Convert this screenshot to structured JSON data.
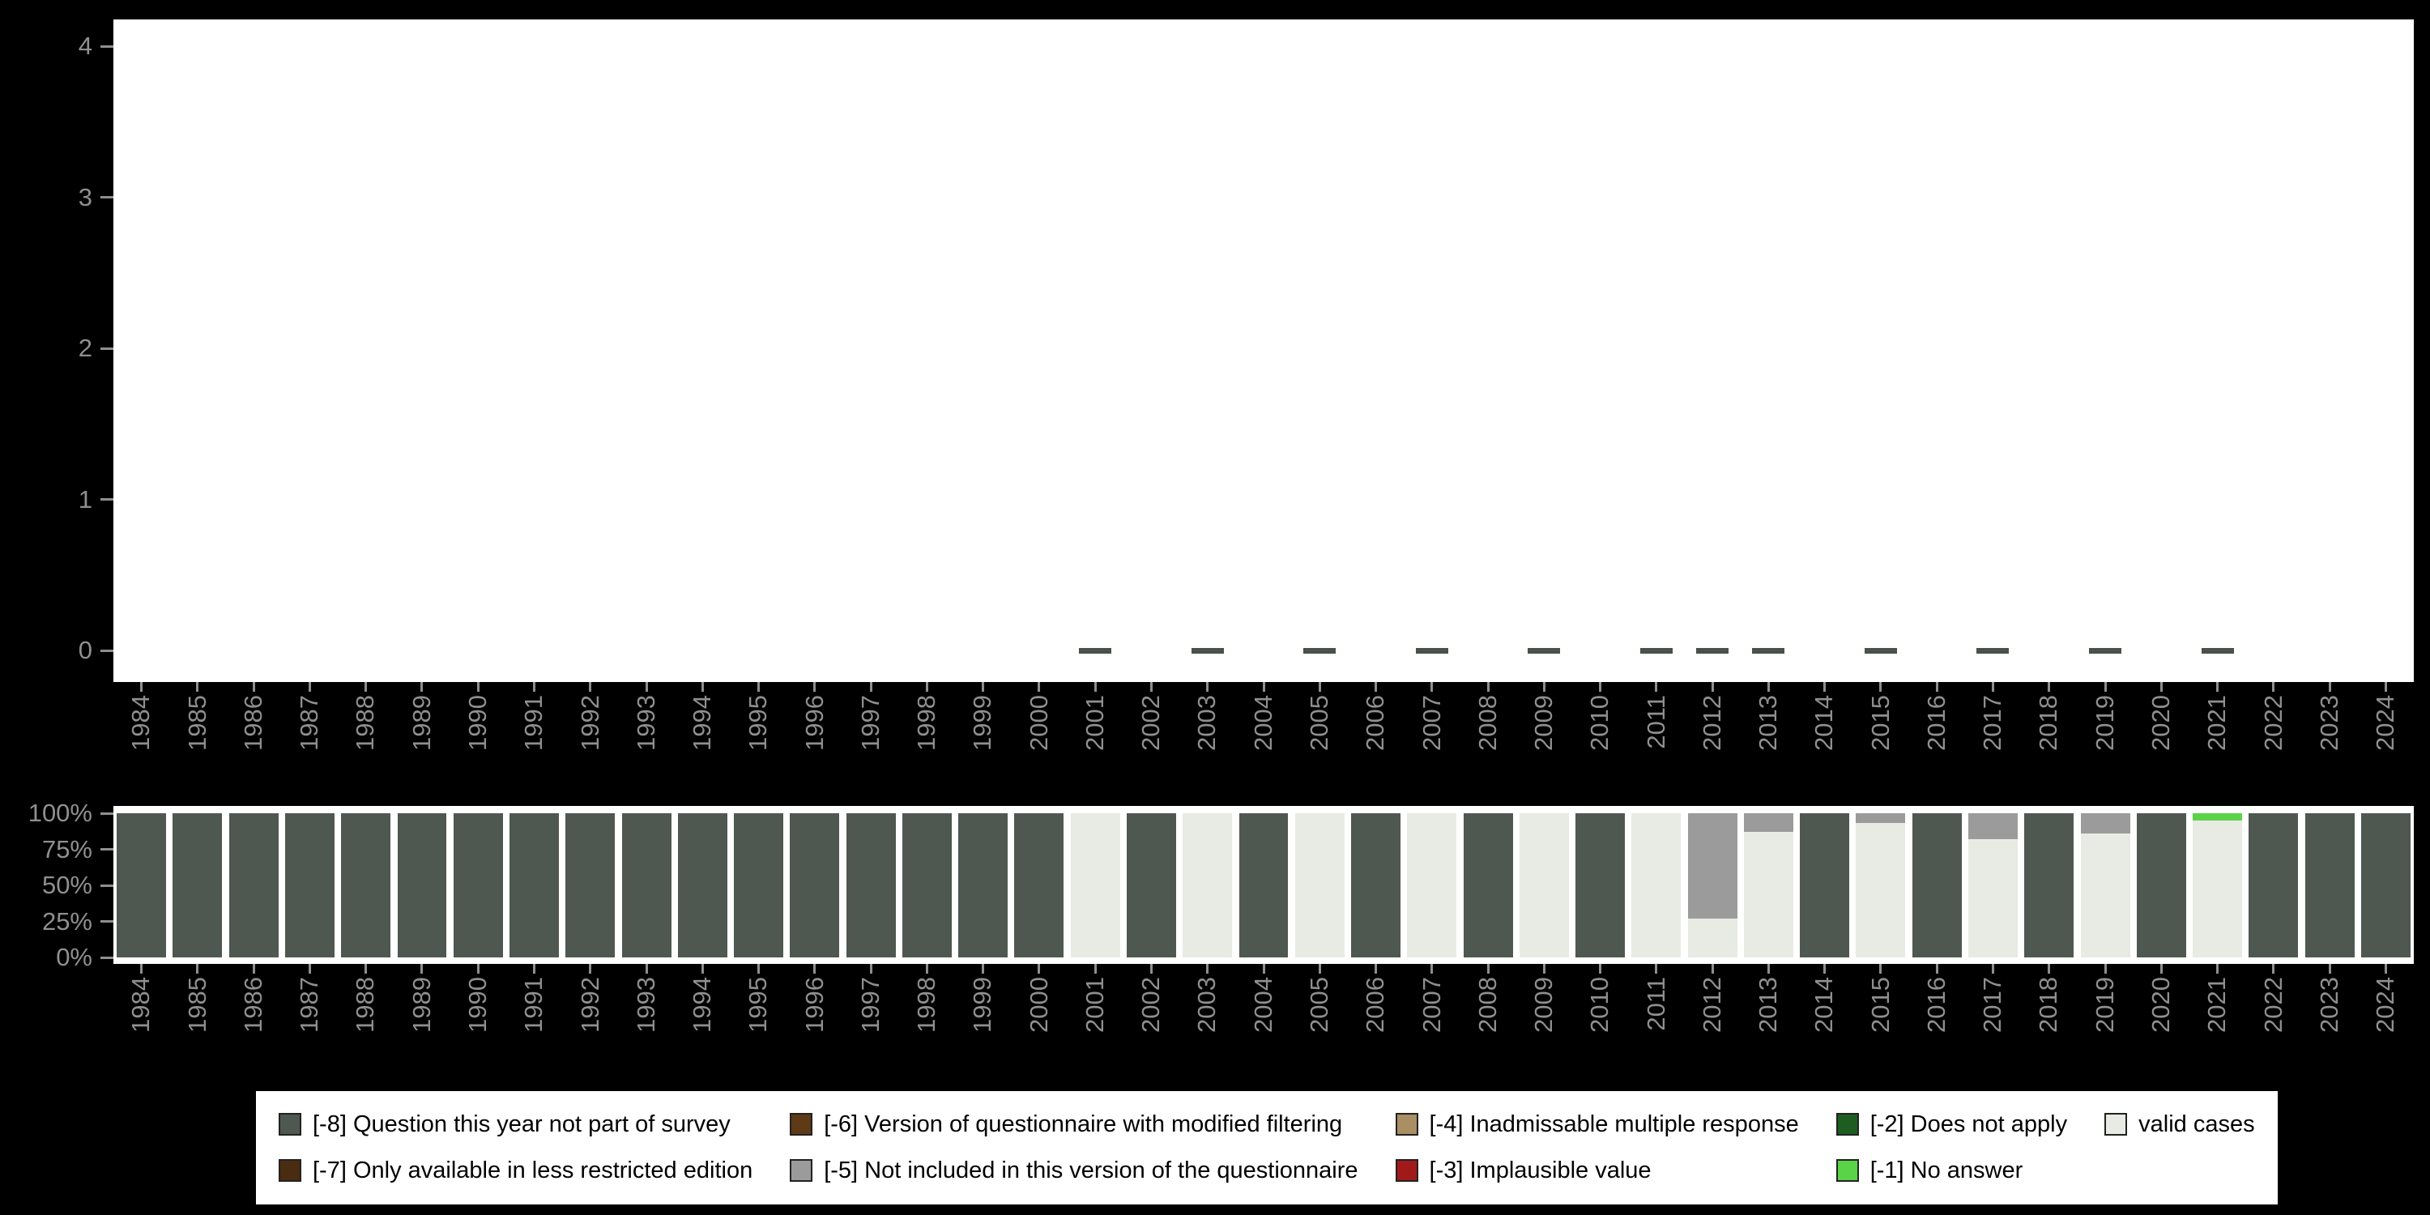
{
  "style": {
    "page_background": "#000000",
    "panel_background": "#ffffff",
    "axis_text_color": "#8f8f8f",
    "legend_background": "#ffffff",
    "legend_text_color": "#000000"
  },
  "years": [
    "1984",
    "1985",
    "1986",
    "1987",
    "1988",
    "1989",
    "1990",
    "1991",
    "1992",
    "1993",
    "1994",
    "1995",
    "1996",
    "1997",
    "1998",
    "1999",
    "2000",
    "2001",
    "2002",
    "2003",
    "2004",
    "2005",
    "2006",
    "2007",
    "2008",
    "2009",
    "2010",
    "2011",
    "2012",
    "2013",
    "2014",
    "2015",
    "2016",
    "2017",
    "2018",
    "2019",
    "2020",
    "2021",
    "2022",
    "2023",
    "2024"
  ],
  "chart_data": [
    {
      "type": "scatter",
      "title": "",
      "xlabel": "",
      "ylabel": "",
      "marker": "dash",
      "marker_color": "#49514a",
      "ylim": [
        0,
        4
      ],
      "yticks": [
        0,
        1,
        2,
        3,
        4
      ],
      "ytick_labels": [
        "0",
        "1",
        "2",
        "3",
        "4"
      ],
      "x": [
        2001,
        2003,
        2005,
        2007,
        2009,
        2011,
        2012,
        2013,
        2015,
        2017,
        2019,
        2021
      ],
      "y": [
        0,
        0,
        0,
        0,
        0,
        0,
        0,
        0,
        0,
        0,
        0,
        0
      ],
      "note": "dash marker drawn at value 0 for each survey year with valid cases; x axis spans all years 1984-2024"
    },
    {
      "type": "bar",
      "subtype": "stacked-percent",
      "title": "",
      "xlabel": "",
      "ylabel": "",
      "ylim": [
        0,
        100
      ],
      "yticks": [
        0,
        25,
        50,
        75,
        100
      ],
      "ytick_labels": [
        "0%",
        "25%",
        "50%",
        "75%",
        "100%"
      ],
      "categories": [
        1984,
        1985,
        1986,
        1987,
        1988,
        1989,
        1990,
        1991,
        1992,
        1993,
        1994,
        1995,
        1996,
        1997,
        1998,
        1999,
        2000,
        2001,
        2002,
        2003,
        2004,
        2005,
        2006,
        2007,
        2008,
        2009,
        2010,
        2011,
        2012,
        2013,
        2014,
        2015,
        2016,
        2017,
        2018,
        2019,
        2020,
        2021,
        2022,
        2023,
        2024
      ],
      "stack_order": "series listed bottom-to-top",
      "series": [
        {
          "name": "valid cases",
          "color": "#e8ebe3",
          "values": [
            0,
            0,
            0,
            0,
            0,
            0,
            0,
            0,
            0,
            0,
            0,
            0,
            0,
            0,
            0,
            0,
            0,
            100,
            0,
            100,
            0,
            100,
            0,
            100,
            0,
            100,
            0,
            100,
            27,
            87,
            0,
            93,
            0,
            82,
            0,
            86,
            0,
            95,
            0,
            0,
            0
          ]
        },
        {
          "name": "[-1] No answer",
          "color": "#5bd348",
          "values": [
            0,
            0,
            0,
            0,
            0,
            0,
            0,
            0,
            0,
            0,
            0,
            0,
            0,
            0,
            0,
            0,
            0,
            0,
            0,
            0,
            0,
            0,
            0,
            0,
            0,
            0,
            0,
            0,
            0,
            0,
            0,
            0,
            0,
            0,
            0,
            0,
            0,
            5,
            0,
            0,
            0
          ]
        },
        {
          "name": "[-2] Does not apply",
          "color": "#1d5e20",
          "values": [
            0,
            0,
            0,
            0,
            0,
            0,
            0,
            0,
            0,
            0,
            0,
            0,
            0,
            0,
            0,
            0,
            0,
            0,
            0,
            0,
            0,
            0,
            0,
            0,
            0,
            0,
            0,
            0,
            0,
            0,
            0,
            0,
            0,
            0,
            0,
            0,
            0,
            0,
            0,
            0,
            0
          ]
        },
        {
          "name": "[-3] Implausible value",
          "color": "#a11a1a",
          "values": [
            0,
            0,
            0,
            0,
            0,
            0,
            0,
            0,
            0,
            0,
            0,
            0,
            0,
            0,
            0,
            0,
            0,
            0,
            0,
            0,
            0,
            0,
            0,
            0,
            0,
            0,
            0,
            0,
            0,
            0,
            0,
            0,
            0,
            0,
            0,
            0,
            0,
            0,
            0,
            0,
            0
          ]
        },
        {
          "name": "[-4] Inadmissable multiple response",
          "color": "#a98f63",
          "values": [
            0,
            0,
            0,
            0,
            0,
            0,
            0,
            0,
            0,
            0,
            0,
            0,
            0,
            0,
            0,
            0,
            0,
            0,
            0,
            0,
            0,
            0,
            0,
            0,
            0,
            0,
            0,
            0,
            0,
            0,
            0,
            0,
            0,
            0,
            0,
            0,
            0,
            0,
            0,
            0,
            0
          ]
        },
        {
          "name": "[-5] Not included in this version of the questionnaire",
          "color": "#9b9b9b",
          "values": [
            0,
            0,
            0,
            0,
            0,
            0,
            0,
            0,
            0,
            0,
            0,
            0,
            0,
            0,
            0,
            0,
            0,
            0,
            0,
            0,
            0,
            0,
            0,
            0,
            0,
            0,
            0,
            0,
            73,
            13,
            0,
            7,
            0,
            18,
            0,
            14,
            0,
            0,
            0,
            0,
            0
          ]
        },
        {
          "name": "[-6] Version of questionnaire with modified filtering",
          "color": "#5e3a17",
          "values": [
            0,
            0,
            0,
            0,
            0,
            0,
            0,
            0,
            0,
            0,
            0,
            0,
            0,
            0,
            0,
            0,
            0,
            0,
            0,
            0,
            0,
            0,
            0,
            0,
            0,
            0,
            0,
            0,
            0,
            0,
            0,
            0,
            0,
            0,
            0,
            0,
            0,
            0,
            0,
            0,
            0
          ]
        },
        {
          "name": "[-7] Only available in less restricted edition",
          "color": "#4a2c10",
          "values": [
            0,
            0,
            0,
            0,
            0,
            0,
            0,
            0,
            0,
            0,
            0,
            0,
            0,
            0,
            0,
            0,
            0,
            0,
            0,
            0,
            0,
            0,
            0,
            0,
            0,
            0,
            0,
            0,
            0,
            0,
            0,
            0,
            0,
            0,
            0,
            0,
            0,
            0,
            0,
            0,
            0
          ]
        },
        {
          "name": "[-8] Question this year not part of survey",
          "color": "#4f5850",
          "values": [
            100,
            100,
            100,
            100,
            100,
            100,
            100,
            100,
            100,
            100,
            100,
            100,
            100,
            100,
            100,
            100,
            100,
            0,
            100,
            0,
            100,
            0,
            100,
            0,
            100,
            0,
            100,
            0,
            0,
            0,
            100,
            0,
            100,
            0,
            100,
            0,
            100,
            0,
            100,
            100,
            100
          ]
        }
      ]
    }
  ],
  "legend": {
    "items": [
      {
        "label": "[-8] Question this year not part of survey",
        "color": "#4f5850"
      },
      {
        "label": "[-7] Only available in less restricted edition",
        "color": "#4a2c10"
      },
      {
        "label": "[-6] Version of questionnaire with modified filtering",
        "color": "#5e3a17"
      },
      {
        "label": "[-5] Not included in this version of the questionnaire",
        "color": "#9b9b9b"
      },
      {
        "label": "[-4] Inadmissable multiple response",
        "color": "#a98f63"
      },
      {
        "label": "[-3] Implausible value",
        "color": "#a11a1a"
      },
      {
        "label": "[-2] Does not apply",
        "color": "#1d5e20"
      },
      {
        "label": "[-1] No answer",
        "color": "#5bd348"
      },
      {
        "label": "valid cases",
        "color": "#e8ebe3"
      }
    ]
  }
}
